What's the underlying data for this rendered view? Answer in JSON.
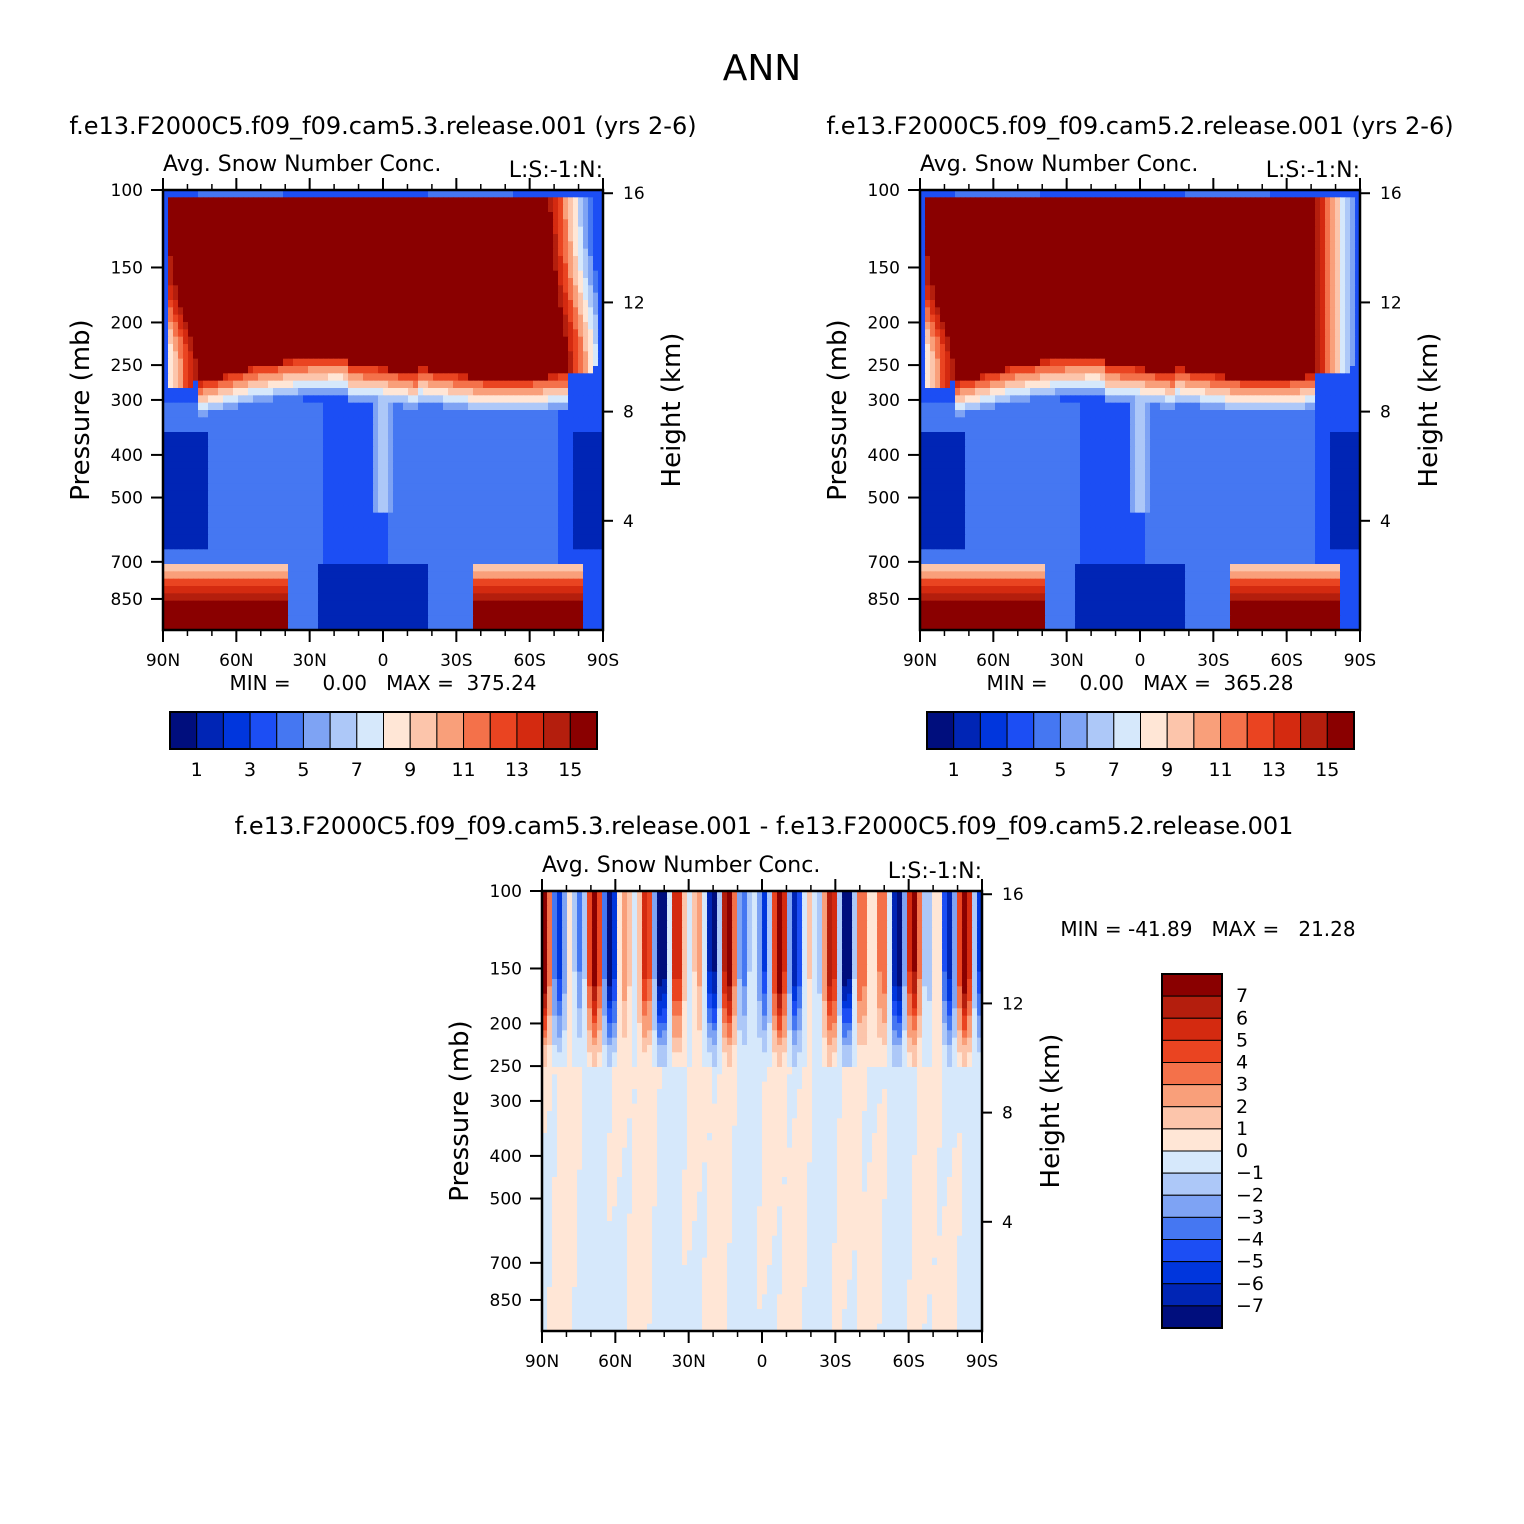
{
  "figure_title": "ANN",
  "colors": {
    "seq": [
      "#000e7d",
      "#0025b5",
      "#0036dd",
      "#1c4ef4",
      "#4577f2",
      "#7ea3f4",
      "#adc8f8",
      "#d6e8fb",
      "#ffe6d6",
      "#fcc5ab",
      "#f99f7a",
      "#f4714a",
      "#ea4421",
      "#d42a10",
      "#b41e0d",
      "#8a0000"
    ],
    "div": [
      "#000e7d",
      "#0025b5",
      "#0036dd",
      "#1c4ef4",
      "#4577f2",
      "#7ea3f4",
      "#adc8f8",
      "#d6e8fb",
      "#ffe6d6",
      "#fcc5ab",
      "#f99f7a",
      "#f4714a",
      "#ea4421",
      "#d42a10",
      "#b41e0d",
      "#8a0000"
    ]
  },
  "panels": [
    {
      "case_title": "f.e13.F2000C5.f09_f09.cam5.3.release.001  (yrs 2-6)",
      "var_title": "Avg. Snow Number Conc.",
      "units_label": "L:S:-1:N:",
      "min_max": "MIN =     0.00   MAX =  375.24"
    },
    {
      "case_title": "f.e13.F2000C5.f09_f09.cam5.2.release.001  (yrs 2-6)",
      "var_title": "Avg. Snow Number Conc.",
      "units_label": "L:S:-1:N:",
      "min_max": "MIN =     0.00   MAX =  365.28"
    },
    {
      "case_title": "f.e13.F2000C5.f09_f09.cam5.3.release.001 - f.e13.F2000C5.f09_f09.cam5.2.release.001",
      "var_title": "Avg. Snow Number Conc.",
      "units_label": "L:S:-1:N:",
      "min_max": "MIN = -41.89   MAX =   21.28"
    }
  ],
  "chart_data": [
    {
      "type": "heatmap",
      "title": "Avg. Snow Number Conc.",
      "xlabel": "",
      "ylabel": "Pressure (mb)",
      "y2label": "Height (km)",
      "x_ticks": [
        "90N",
        "60N",
        "30N",
        "0",
        "30S",
        "60S",
        "90S"
      ],
      "y_ticks": [
        100,
        150,
        200,
        250,
        300,
        400,
        500,
        700,
        850
      ],
      "y2_ticks": [
        16,
        12,
        8,
        4
      ],
      "ylim": [
        100,
        1000
      ],
      "colorbar_levels": [
        1,
        2,
        3,
        4,
        5,
        6,
        7,
        8,
        9,
        10,
        11,
        12,
        13,
        14,
        15
      ],
      "colorbar_labels": [
        "1",
        "3",
        "5",
        "7",
        "9",
        "11",
        "13",
        "15"
      ],
      "min": 0.0,
      "max": 375.24
    },
    {
      "type": "heatmap",
      "title": "Avg. Snow Number Conc.",
      "xlabel": "",
      "ylabel": "Pressure (mb)",
      "y2label": "Height (km)",
      "x_ticks": [
        "90N",
        "60N",
        "30N",
        "0",
        "30S",
        "60S",
        "90S"
      ],
      "y_ticks": [
        100,
        150,
        200,
        250,
        300,
        400,
        500,
        700,
        850
      ],
      "y2_ticks": [
        16,
        12,
        8,
        4
      ],
      "ylim": [
        100,
        1000
      ],
      "colorbar_levels": [
        1,
        2,
        3,
        4,
        5,
        6,
        7,
        8,
        9,
        10,
        11,
        12,
        13,
        14,
        15
      ],
      "colorbar_labels": [
        "1",
        "3",
        "5",
        "7",
        "9",
        "11",
        "13",
        "15"
      ],
      "min": 0.0,
      "max": 365.28
    },
    {
      "type": "heatmap",
      "title": "Avg. Snow Number Conc.",
      "xlabel": "",
      "ylabel": "Pressure (mb)",
      "y2label": "Height (km)",
      "x_ticks": [
        "90N",
        "60N",
        "30N",
        "0",
        "30S",
        "60S",
        "90S"
      ],
      "y_ticks": [
        100,
        150,
        200,
        250,
        300,
        400,
        500,
        700,
        850
      ],
      "y2_ticks": [
        16,
        12,
        8,
        4
      ],
      "ylim": [
        100,
        1000
      ],
      "colorbar_levels": [
        -7,
        -6,
        -5,
        -4,
        -3,
        -2,
        -1,
        0,
        1,
        2,
        3,
        4,
        5,
        6,
        7
      ],
      "colorbar_labels": [
        "7",
        "6",
        "5",
        "4",
        "3",
        "2",
        "1",
        "0",
        "−1",
        "−2",
        "−3",
        "−4",
        "−5",
        "−6",
        "−7"
      ],
      "min": -41.89,
      "max": 21.28
    }
  ]
}
